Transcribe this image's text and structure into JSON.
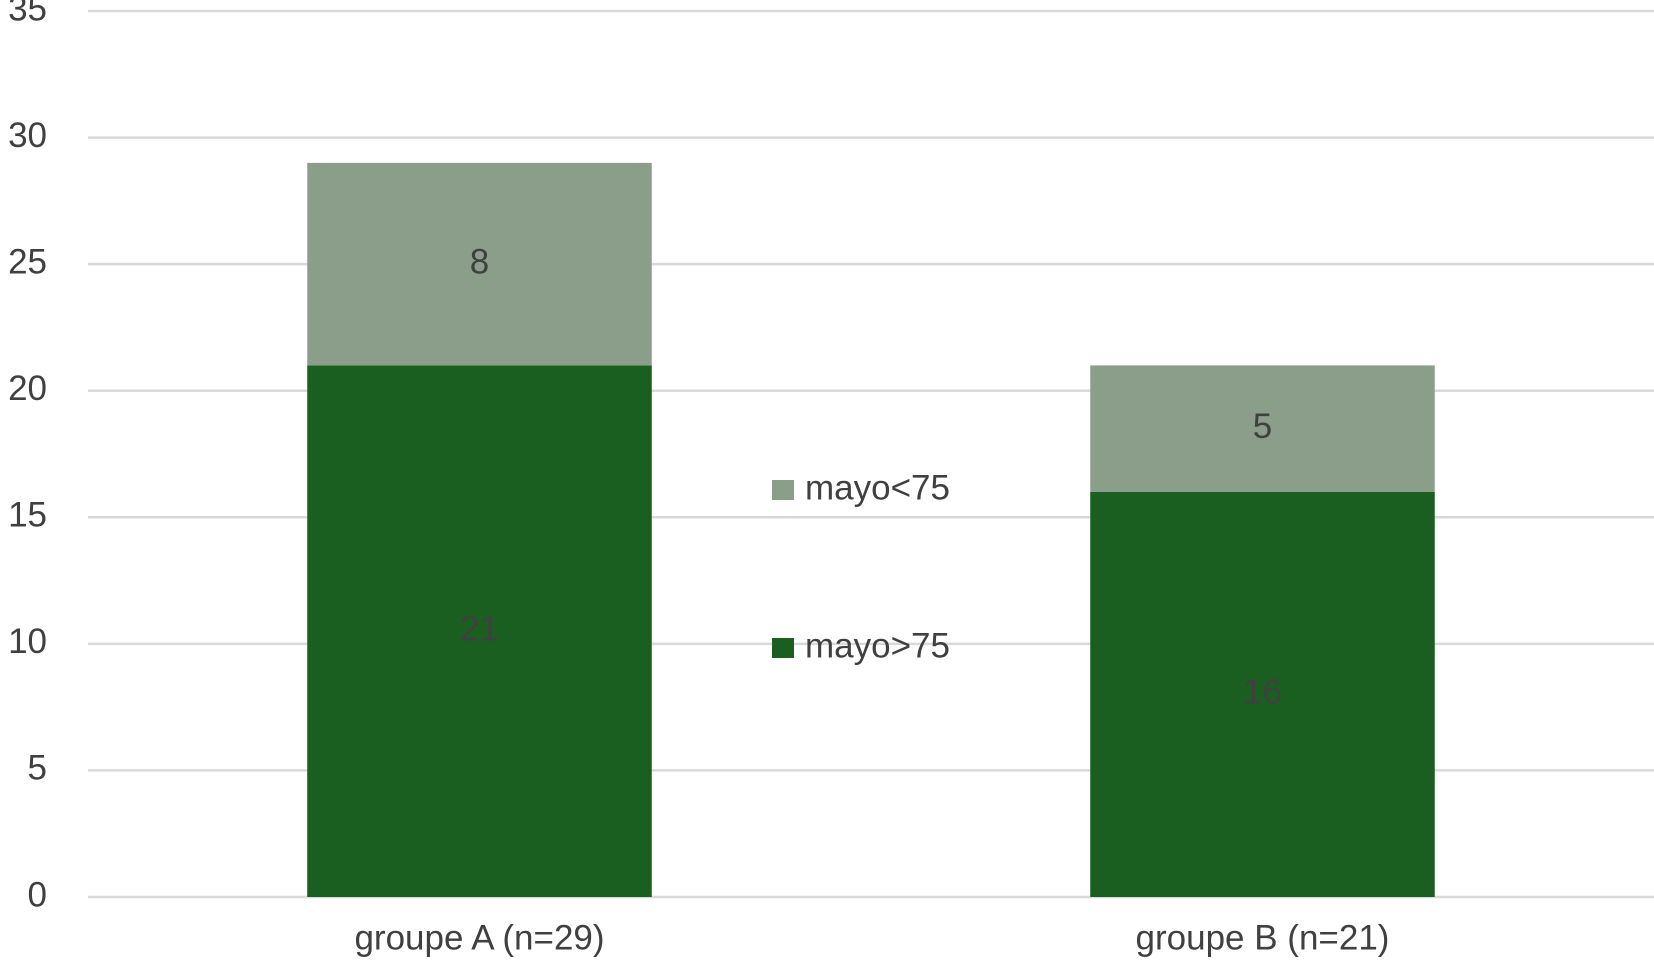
{
  "chart_data": {
    "type": "stacked_bar",
    "categories": [
      "groupe A (n=29)",
      "groupe B (n=21)"
    ],
    "series": [
      {
        "name": "mayo>75",
        "color": "#1a5e20",
        "values": [
          21,
          16
        ]
      },
      {
        "name": "mayo<75",
        "color": "#8a9e89",
        "values": [
          8,
          5
        ]
      }
    ],
    "ylim": [
      0,
      35
    ],
    "yticks": [
      0,
      5,
      10,
      15,
      20,
      25,
      30,
      35
    ],
    "grid": true,
    "legend": "center"
  }
}
